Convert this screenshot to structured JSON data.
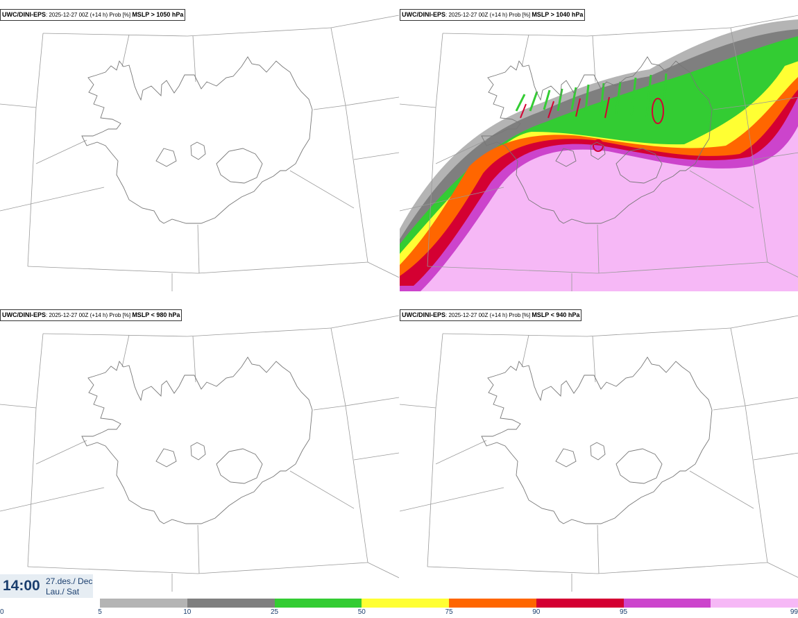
{
  "panels": [
    {
      "model": "UWC/DINI-EPS",
      "run": ": 2025-12-27 00Z (+14 h) Prob [%]",
      "criterion": "MSLP > 1050 hPa"
    },
    {
      "model": "UWC/DINI-EPS",
      "run": ": 2025-12-27 00Z (+14 h) Prob [%]",
      "criterion": "MSLP > 1040 hPa"
    },
    {
      "model": "UWC/DINI-EPS",
      "run": ": 2025-12-27 00Z (+14 h) Prob [%]",
      "criterion": "MSLP < 980 hPa"
    },
    {
      "model": "UWC/DINI-EPS",
      "run": ": 2025-12-27 00Z (+14 h) Prob [%]",
      "criterion": "MSLP < 940 hPa"
    }
  ],
  "valid_time": {
    "time": "14:00",
    "date_line1": "27.des./ Dec",
    "date_line2": "Lau./ Sat"
  },
  "colorbar": {
    "ticks": [
      "0",
      "5",
      "10",
      "25",
      "50",
      "75",
      "90",
      "95",
      "99"
    ],
    "colors": [
      "#b4b4b4",
      "#7f7f7f",
      "#33cc33",
      "#ffff33",
      "#ff6600",
      "#d40032",
      "#cc44cc",
      "#f6b8f6"
    ]
  }
}
